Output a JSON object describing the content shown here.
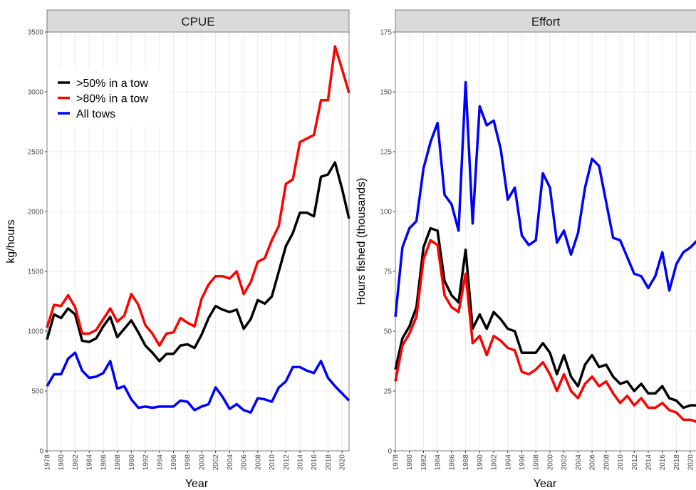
{
  "chart_data": [
    {
      "type": "line",
      "title": "CPUE",
      "x_label": "Year",
      "y_label": "kg/hours",
      "x": [
        1978,
        1979,
        1980,
        1981,
        1982,
        1983,
        1984,
        1985,
        1986,
        1987,
        1988,
        1989,
        1990,
        1991,
        1992,
        1993,
        1994,
        1995,
        1996,
        1997,
        1998,
        1999,
        2000,
        2001,
        2002,
        2003,
        2004,
        2005,
        2006,
        2007,
        2008,
        2009,
        2010,
        2011,
        2012,
        2013,
        2014,
        2015,
        2016,
        2017,
        2018,
        2019,
        2020,
        2021
      ],
      "series": [
        {
          "name": ">50% in a tow",
          "color": "#000000",
          "values": [
            930,
            1140,
            1110,
            1190,
            1140,
            920,
            910,
            940,
            1040,
            1120,
            950,
            1020,
            1090,
            990,
            880,
            820,
            750,
            810,
            810,
            880,
            890,
            860,
            970,
            1110,
            1210,
            1180,
            1160,
            1180,
            1020,
            1100,
            1260,
            1230,
            1290,
            1500,
            1710,
            1820,
            1990,
            1990,
            1960,
            2290,
            2310,
            2410,
            2190,
            1940
          ]
        },
        {
          "name": ">80% in a tow",
          "color": "#ff0000",
          "values": [
            1030,
            1220,
            1210,
            1300,
            1200,
            980,
            980,
            1010,
            1100,
            1190,
            1080,
            1130,
            1310,
            1220,
            1050,
            980,
            880,
            980,
            990,
            1110,
            1070,
            1040,
            1270,
            1390,
            1460,
            1460,
            1440,
            1500,
            1310,
            1410,
            1580,
            1610,
            1760,
            1880,
            2230,
            2270,
            2580,
            2610,
            2640,
            2930,
            2930,
            3380,
            3190,
            2990
          ]
        },
        {
          "name": "All tows",
          "color": "#0000ff",
          "values": [
            540,
            640,
            640,
            770,
            820,
            670,
            610,
            620,
            650,
            750,
            520,
            540,
            430,
            360,
            370,
            360,
            370,
            370,
            370,
            420,
            410,
            340,
            370,
            390,
            530,
            450,
            350,
            390,
            340,
            320,
            440,
            430,
            410,
            530,
            580,
            700,
            700,
            670,
            650,
            750,
            610,
            540,
            480,
            420
          ]
        }
      ],
      "xlim": [
        1978,
        2021
      ],
      "xticks": [
        1978,
        1980,
        1982,
        1984,
        1986,
        1988,
        1990,
        1992,
        1994,
        1996,
        1998,
        2000,
        2002,
        2004,
        2006,
        2008,
        2010,
        2012,
        2014,
        2016,
        2018,
        2020
      ],
      "ylim": [
        0,
        3500
      ],
      "yticks": [
        0,
        500,
        1000,
        1500,
        2000,
        2500,
        3000,
        3500
      ],
      "grid": true,
      "legend": "top-left"
    },
    {
      "type": "line",
      "title": "Effort",
      "x_label": "Year",
      "y_label": "Hours fished (thousands)",
      "x": [
        1978,
        1979,
        1980,
        1981,
        1982,
        1983,
        1984,
        1985,
        1986,
        1987,
        1988,
        1989,
        1990,
        1991,
        1992,
        1993,
        1994,
        1995,
        1996,
        1997,
        1998,
        1999,
        2000,
        2001,
        2002,
        2003,
        2004,
        2005,
        2006,
        2007,
        2008,
        2009,
        2010,
        2011,
        2012,
        2013,
        2014,
        2015,
        2016,
        2017,
        2018,
        2019,
        2020,
        2021
      ],
      "series": [
        {
          "color": "#0000ff",
          "values": [
            56,
            85,
            93,
            96,
            118,
            129,
            137,
            107,
            103,
            92,
            154,
            95,
            144,
            136,
            138,
            126,
            105,
            110,
            90,
            86,
            88,
            116,
            110,
            87,
            92,
            82,
            91,
            110,
            122,
            119,
            104,
            89,
            88,
            81,
            74,
            73,
            68,
            73,
            83,
            67,
            78,
            83,
            85,
            88
          ]
        },
        {
          "color": "#000000",
          "values": [
            34,
            47,
            52,
            60,
            85,
            93,
            92,
            71,
            65,
            62,
            84,
            51,
            57,
            51,
            58,
            55,
            51,
            50,
            41,
            41,
            41,
            45,
            41,
            32,
            40,
            31,
            27,
            36,
            40,
            35,
            36,
            31,
            28,
            29,
            25,
            28,
            24,
            24,
            27,
            22,
            21,
            18,
            19,
            19
          ]
        },
        {
          "color": "#ff0000",
          "values": [
            29,
            44,
            49,
            56,
            80,
            88,
            86,
            65,
            60,
            58,
            74,
            45,
            48,
            40,
            48,
            46,
            43,
            42,
            33,
            32,
            34,
            37,
            32,
            25,
            32,
            25,
            22,
            28,
            31,
            27,
            29,
            24,
            20,
            23,
            19,
            22,
            18,
            18,
            20,
            17,
            16,
            13,
            13,
            12
          ]
        }
      ],
      "xlim": [
        1978,
        2021
      ],
      "xticks": [
        1978,
        1980,
        1982,
        1984,
        1986,
        1988,
        1990,
        1992,
        1994,
        1996,
        1998,
        2000,
        2002,
        2004,
        2006,
        2008,
        2010,
        2012,
        2014,
        2016,
        2018,
        2020
      ],
      "ylim": [
        0,
        175
      ],
      "yticks": [
        0,
        25,
        50,
        75,
        100,
        125,
        150,
        175
      ],
      "grid": true
    }
  ]
}
